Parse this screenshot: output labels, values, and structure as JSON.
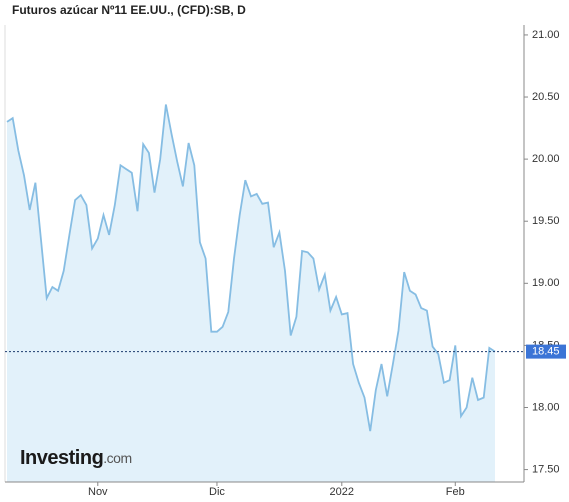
{
  "chart_data": {
    "type": "area",
    "title": "Futuros azúcar Nº11 EE.UU., (CFD):SB, D",
    "logo": "Investing",
    "logo_suffix": ".com",
    "categories": [
      null,
      null,
      null,
      null,
      null,
      null,
      null,
      null,
      null,
      null,
      null,
      null,
      null,
      null,
      null,
      null,
      "Nov",
      null,
      null,
      null,
      null,
      null,
      null,
      null,
      null,
      null,
      null,
      null,
      null,
      null,
      null,
      null,
      null,
      null,
      null,
      null,
      null,
      "Dic",
      null,
      null,
      null,
      null,
      null,
      null,
      null,
      null,
      null,
      null,
      null,
      null,
      null,
      null,
      null,
      null,
      null,
      null,
      null,
      null,
      null,
      "2022",
      null,
      null,
      null,
      null,
      null,
      null,
      null,
      null,
      null,
      null,
      null,
      null,
      null,
      null,
      null,
      null,
      null,
      null,
      null,
      "Feb",
      null,
      null,
      null,
      null,
      null,
      null,
      null
    ],
    "values": [
      20.3,
      20.33,
      20.07,
      19.87,
      19.59,
      19.81,
      19.35,
      18.88,
      18.97,
      18.94,
      19.1,
      19.39,
      19.67,
      19.71,
      19.63,
      19.28,
      19.36,
      19.55,
      19.39,
      19.63,
      19.95,
      19.92,
      19.89,
      19.58,
      20.12,
      20.05,
      19.73,
      20.0,
      20.44,
      20.2,
      19.98,
      19.78,
      20.13,
      19.95,
      19.33,
      19.2,
      18.61,
      18.61,
      18.65,
      18.77,
      19.2,
      19.55,
      19.83,
      19.7,
      19.72,
      19.64,
      19.65,
      19.29,
      19.41,
      19.1,
      18.58,
      18.73,
      19.26,
      19.25,
      19.2,
      18.95,
      19.07,
      18.78,
      18.89,
      18.75,
      18.76,
      18.35,
      18.2,
      18.08,
      17.81,
      18.14,
      18.35,
      18.09,
      18.35,
      18.62,
      19.09,
      18.94,
      18.91,
      18.8,
      18.78,
      18.49,
      18.43,
      18.2,
      18.22,
      18.5,
      17.93,
      18.0,
      18.24,
      18.06,
      18.08,
      18.48,
      18.45
    ],
    "color": "#86bde3",
    "fill_color": "#e2f1fa",
    "last_price": 18.45,
    "ylim": [
      17.4,
      21.08
    ],
    "yticks": [
      {
        "value": 17.5,
        "label": "17.50"
      },
      {
        "value": 18,
        "label": "18.00"
      },
      {
        "value": 18.5,
        "label": "18.50"
      },
      {
        "value": 19,
        "label": "19.00"
      },
      {
        "value": 19.5,
        "label": "19.50"
      },
      {
        "value": 20,
        "label": "20.00"
      },
      {
        "value": 20.5,
        "label": "20.50"
      },
      {
        "value": 21,
        "label": "21.00"
      }
    ],
    "grid": false
  }
}
